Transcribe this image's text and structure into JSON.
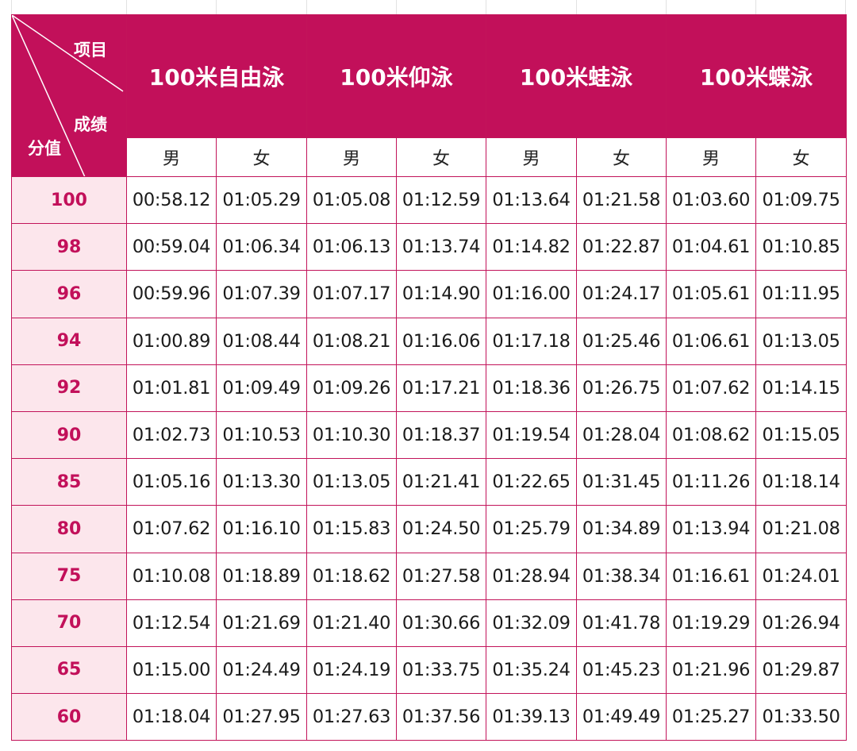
{
  "header": {
    "corner_item": "项目",
    "corner_result": "成绩",
    "corner_score": "分值",
    "events": [
      "100米自由泳",
      "100米仰泳",
      "100米蛙泳",
      "100米蝶泳"
    ],
    "male": "男",
    "female": "女"
  },
  "colors": {
    "accent": "#c2105a",
    "score_bg": "#fce6ec",
    "border": "#c2145a"
  },
  "rows": [
    {
      "score": "100",
      "times": [
        "00:58.12",
        "01:05.29",
        "01:05.08",
        "01:12.59",
        "01:13.64",
        "01:21.58",
        "01:03.60",
        "01:09.75"
      ]
    },
    {
      "score": "98",
      "times": [
        "00:59.04",
        "01:06.34",
        "01:06.13",
        "01:13.74",
        "01:14.82",
        "01:22.87",
        "01:04.61",
        "01:10.85"
      ]
    },
    {
      "score": "96",
      "times": [
        "00:59.96",
        "01:07.39",
        "01:07.17",
        "01:14.90",
        "01:16.00",
        "01:24.17",
        "01:05.61",
        "01:11.95"
      ]
    },
    {
      "score": "94",
      "times": [
        "01:00.89",
        "01:08.44",
        "01:08.21",
        "01:16.06",
        "01:17.18",
        "01:25.46",
        "01:06.61",
        "01:13.05"
      ]
    },
    {
      "score": "92",
      "times": [
        "01:01.81",
        "01:09.49",
        "01:09.26",
        "01:17.21",
        "01:18.36",
        "01:26.75",
        "01:07.62",
        "01:14.15"
      ]
    },
    {
      "score": "90",
      "times": [
        "01:02.73",
        "01:10.53",
        "01:10.30",
        "01:18.37",
        "01:19.54",
        "01:28.04",
        "01:08.62",
        "01:15.05"
      ]
    },
    {
      "score": "85",
      "times": [
        "01:05.16",
        "01:13.30",
        "01:13.05",
        "01:21.41",
        "01:22.65",
        "01:31.45",
        "01:11.26",
        "01:18.14"
      ]
    },
    {
      "score": "80",
      "times": [
        "01:07.62",
        "01:16.10",
        "01:15.83",
        "01:24.50",
        "01:25.79",
        "01:34.89",
        "01:13.94",
        "01:21.08"
      ]
    },
    {
      "score": "75",
      "times": [
        "01:10.08",
        "01:18.89",
        "01:18.62",
        "01:27.58",
        "01:28.94",
        "01:38.34",
        "01:16.61",
        "01:24.01"
      ]
    },
    {
      "score": "70",
      "times": [
        "01:12.54",
        "01:21.69",
        "01:21.40",
        "01:30.66",
        "01:32.09",
        "01:41.78",
        "01:19.29",
        "01:26.94"
      ]
    },
    {
      "score": "65",
      "times": [
        "01:15.00",
        "01:24.49",
        "01:24.19",
        "01:33.75",
        "01:35.24",
        "01:45.23",
        "01:21.96",
        "01:29.87"
      ]
    },
    {
      "score": "60",
      "times": [
        "01:18.04",
        "01:27.95",
        "01:27.63",
        "01:37.56",
        "01:39.13",
        "01:49.49",
        "01:25.27",
        "01:33.50"
      ]
    }
  ]
}
